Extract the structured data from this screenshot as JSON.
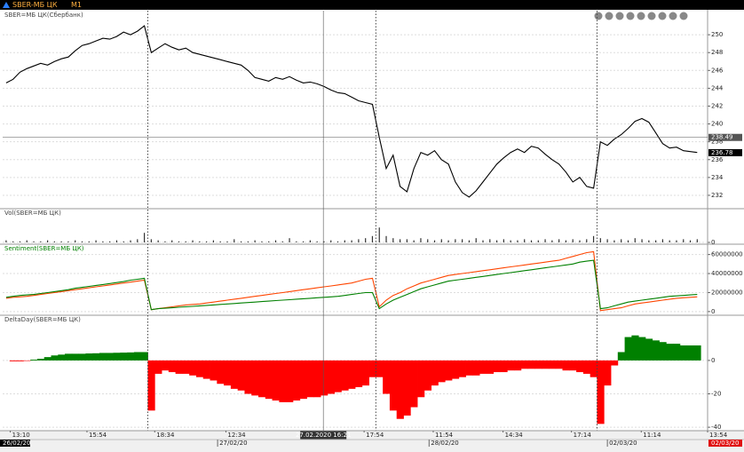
{
  "toolbar": {
    "symbol": "SBER-МБ ЦК",
    "interval": "M1"
  },
  "chart_data": [
    {
      "type": "line",
      "title": "SBER=МБ ЦК(Сбербанк)",
      "color": "#000000",
      "values": [
        244.6,
        245,
        245.8,
        246.2,
        246.5,
        246.8,
        246.6,
        247,
        247.3,
        247.5,
        248.2,
        248.8,
        249,
        249.3,
        249.6,
        249.5,
        249.8,
        250.3,
        250,
        250.4,
        251,
        248,
        248.5,
        249,
        248.6,
        248.3,
        248.5,
        248,
        247.8,
        247.6,
        247.4,
        247.2,
        247,
        246.8,
        246.6,
        246,
        245.2,
        245,
        244.8,
        245.2,
        245,
        245.3,
        244.9,
        244.6,
        244.7,
        244.5,
        244.2,
        243.8,
        243.5,
        243.4,
        243,
        242.6,
        242.4,
        242.2,
        238.5,
        235,
        236.5,
        233,
        232.4,
        235,
        236.8,
        236.5,
        237,
        236,
        235.5,
        233.5,
        232.3,
        231.8,
        232.5,
        233.5,
        234.5,
        235.5,
        236.2,
        236.8,
        237.2,
        236.8,
        237.5,
        237.3,
        236.6,
        236,
        235.5,
        234.6,
        233.5,
        234,
        233,
        232.8,
        238,
        237.6,
        238.3,
        238.8,
        239.5,
        240.3,
        240.6,
        240.2,
        239,
        237.8,
        237.3,
        237.4,
        237,
        236.9,
        236.8
      ],
      "ylim": [
        230.7,
        252.5
      ],
      "yticks": [
        232,
        234,
        236,
        238,
        240,
        242,
        244,
        246,
        248,
        250
      ],
      "grid": true,
      "price_tags": [
        238.49,
        236.78
      ]
    },
    {
      "type": "bar",
      "title": "Vol(SBER=МБ ЦК)",
      "color": "#333333",
      "values": [
        2,
        1,
        1,
        2,
        1,
        1,
        2,
        1,
        1,
        1,
        2,
        1,
        1,
        2,
        1,
        1,
        2,
        1,
        2,
        3,
        9,
        3,
        2,
        1,
        2,
        1,
        1,
        2,
        1,
        1,
        2,
        1,
        1,
        3,
        1,
        1,
        2,
        1,
        1,
        2,
        1,
        4,
        1,
        1,
        2,
        1,
        1,
        2,
        1,
        2,
        2,
        3,
        4,
        6,
        14,
        6,
        4,
        3,
        3,
        2,
        4,
        3,
        2,
        3,
        2,
        3,
        3,
        2,
        4,
        2,
        3,
        2,
        3,
        2,
        2,
        3,
        2,
        2,
        3,
        2,
        3,
        2,
        3,
        2,
        3,
        6,
        4,
        3,
        2,
        3,
        2,
        4,
        3,
        2,
        2,
        3,
        2,
        2,
        3,
        2,
        3
      ],
      "ylim": [
        0,
        30
      ],
      "yticks": [
        0
      ],
      "grid": true
    },
    {
      "type": "line",
      "title": "Sentiment(SBER=МБ ЦК)",
      "series": [
        {
          "color": "#ff4500",
          "values": [
            14000000.0,
            15000000.0,
            15500000.0,
            16000000.0,
            17000000.0,
            18000000.0,
            19000000.0,
            20000000.0,
            21000000.0,
            22000000.0,
            23000000.0,
            24000000.0,
            25000000.0,
            26000000.0,
            27000000.0,
            28000000.0,
            29000000.0,
            30000000.0,
            31000000.0,
            32000000.0,
            33000000.0,
            2000000.0,
            3000000.0,
            4000000.0,
            5000000.0,
            6000000.0,
            7000000.0,
            7500000.0,
            8000000.0,
            9000000.0,
            10000000.0,
            11000000.0,
            12000000.0,
            13000000.0,
            14000000.0,
            15000000.0,
            16000000.0,
            17000000.0,
            18000000.0,
            19000000.0,
            20000000.0,
            21000000.0,
            22000000.0,
            23000000.0,
            24000000.0,
            25000000.0,
            26000000.0,
            27000000.0,
            28000000.0,
            29000000.0,
            30000000.0,
            32000000.0,
            34000000.0,
            35000000.0,
            5000000.0,
            12000000.0,
            17000000.0,
            20000000.0,
            24000000.0,
            27000000.0,
            30000000.0,
            32000000.0,
            34000000.0,
            36000000.0,
            38000000.0,
            39000000.0,
            40000000.0,
            41000000.0,
            42000000.0,
            43000000.0,
            44000000.0,
            45000000.0,
            46000000.0,
            47000000.0,
            48000000.0,
            49000000.0,
            50000000.0,
            51000000.0,
            52000000.0,
            53000000.0,
            54000000.0,
            56000000.0,
            58000000.0,
            60000000.0,
            62000000.0,
            63000000.0,
            1000000.0,
            2000000.0,
            3000000.0,
            4000000.0,
            6000000.0,
            8000000.0,
            9000000.0,
            10000000.0,
            11000000.0,
            12000000.0,
            13000000.0,
            14000000.0,
            14500000.0,
            15000000.0,
            15500000.0
          ]
        },
        {
          "color": "#008000",
          "values": [
            15000000.0,
            16000000.0,
            17000000.0,
            17500000.0,
            18000000.0,
            19000000.0,
            20000000.0,
            21000000.0,
            22000000.0,
            23000000.0,
            24500000.0,
            25500000.0,
            26500000.0,
            27500000.0,
            28500000.0,
            29500000.0,
            30500000.0,
            31500000.0,
            33000000.0,
            34000000.0,
            35000000.0,
            2000000.0,
            3000000.0,
            3500000.0,
            4000000.0,
            4500000.0,
            5000000.0,
            5500000.0,
            6000000.0,
            6500000.0,
            7000000.0,
            7500000.0,
            8000000.0,
            8500000.0,
            9000000.0,
            9500000.0,
            10000000.0,
            10500000.0,
            11000000.0,
            11500000.0,
            12000000.0,
            12500000.0,
            13000000.0,
            13500000.0,
            14000000.0,
            14500000.0,
            15000000.0,
            15500000.0,
            16000000.0,
            17000000.0,
            18000000.0,
            19000000.0,
            20000000.0,
            20000000.0,
            3000000.0,
            8000000.0,
            12000000.0,
            15000000.0,
            18000000.0,
            21000000.0,
            24000000.0,
            26000000.0,
            28000000.0,
            30000000.0,
            32000000.0,
            33000000.0,
            34000000.0,
            35000000.0,
            36000000.0,
            37000000.0,
            38000000.0,
            39000000.0,
            40000000.0,
            41000000.0,
            42000000.0,
            43000000.0,
            44000000.0,
            45000000.0,
            46000000.0,
            47000000.0,
            48000000.0,
            49000000.0,
            50000000.0,
            52000000.0,
            53000000.0,
            54000000.0,
            3000000.0,
            4000000.0,
            6000000.0,
            8000000.0,
            10000000.0,
            11000000.0,
            12000000.0,
            13000000.0,
            14000000.0,
            15000000.0,
            16000000.0,
            16500000.0,
            17000000.0,
            17500000.0,
            18000000.0
          ]
        }
      ],
      "ylim": [
        -2000000,
        69000000
      ],
      "yticks": [
        0,
        20000000,
        40000000,
        60000000
      ],
      "grid": true
    },
    {
      "type": "area",
      "title": "DeltaDay(SBER=МБ ЦК)",
      "positive_color": "#008000",
      "negative_color": "#ff0000",
      "values": [
        0,
        -0.5,
        -0.5,
        -0.3,
        0.5,
        1,
        2,
        3,
        3.5,
        4,
        4,
        4,
        4.2,
        4.3,
        4.5,
        4.5,
        4.6,
        4.7,
        4.8,
        5,
        5,
        -30,
        -8,
        -6,
        -7,
        -8,
        -8,
        -9,
        -10,
        -11,
        -12,
        -14,
        -15,
        -17,
        -18,
        -20,
        -21,
        -22,
        -23,
        -24,
        -25,
        -25,
        -24,
        -23,
        -22,
        -22,
        -21,
        -20,
        -19,
        -18,
        -17,
        -16,
        -15,
        -10,
        -10,
        -20,
        -30,
        -35,
        -33,
        -28,
        -22,
        -18,
        -15,
        -13,
        -12,
        -11,
        -10,
        -9,
        -9,
        -8,
        -8,
        -7,
        -7,
        -6,
        -6,
        -5,
        -5,
        -5,
        -5,
        -5,
        -5,
        -6,
        -6,
        -7,
        -8,
        -10,
        -38,
        -15,
        -3,
        5,
        14,
        15,
        14,
        13,
        12,
        11,
        10,
        10,
        9,
        9,
        9
      ],
      "ylim": [
        -41,
        26
      ],
      "yticks": [
        -40,
        -20,
        0
      ],
      "grid": true
    }
  ],
  "x_axis": {
    "xlim": [
      -0.5,
      101.5
    ],
    "xticks": [
      {
        "value": 0.6,
        "label": "13:10"
      },
      {
        "value": 11.7,
        "label": "15:54"
      },
      {
        "value": 21.5,
        "label": "18:34"
      },
      {
        "value": 31.8,
        "label": "12:34"
      },
      {
        "value": 51.8,
        "label": "17:54"
      },
      {
        "value": 61.8,
        "label": "11:54"
      },
      {
        "value": 71.9,
        "label": "14:34"
      },
      {
        "value": 81.8,
        "label": "17:14"
      },
      {
        "value": 91.9,
        "label": "11:14"
      },
      {
        "value": 101.5,
        "label": "13:54"
      }
    ],
    "date_ticks": [
      {
        "value": -0.5,
        "label": "26/02/20"
      },
      {
        "value": 30.6,
        "label": "27/02/20"
      },
      {
        "value": 61.2,
        "label": "28/02/20"
      },
      {
        "value": 87,
        "label": "02/03/20"
      }
    ],
    "session_breaks": [
      20.5,
      53.5,
      85.5
    ],
    "cursor": {
      "value": 45.9,
      "label": "27.02.2020 16:21"
    },
    "end_label": "02/03/20"
  }
}
